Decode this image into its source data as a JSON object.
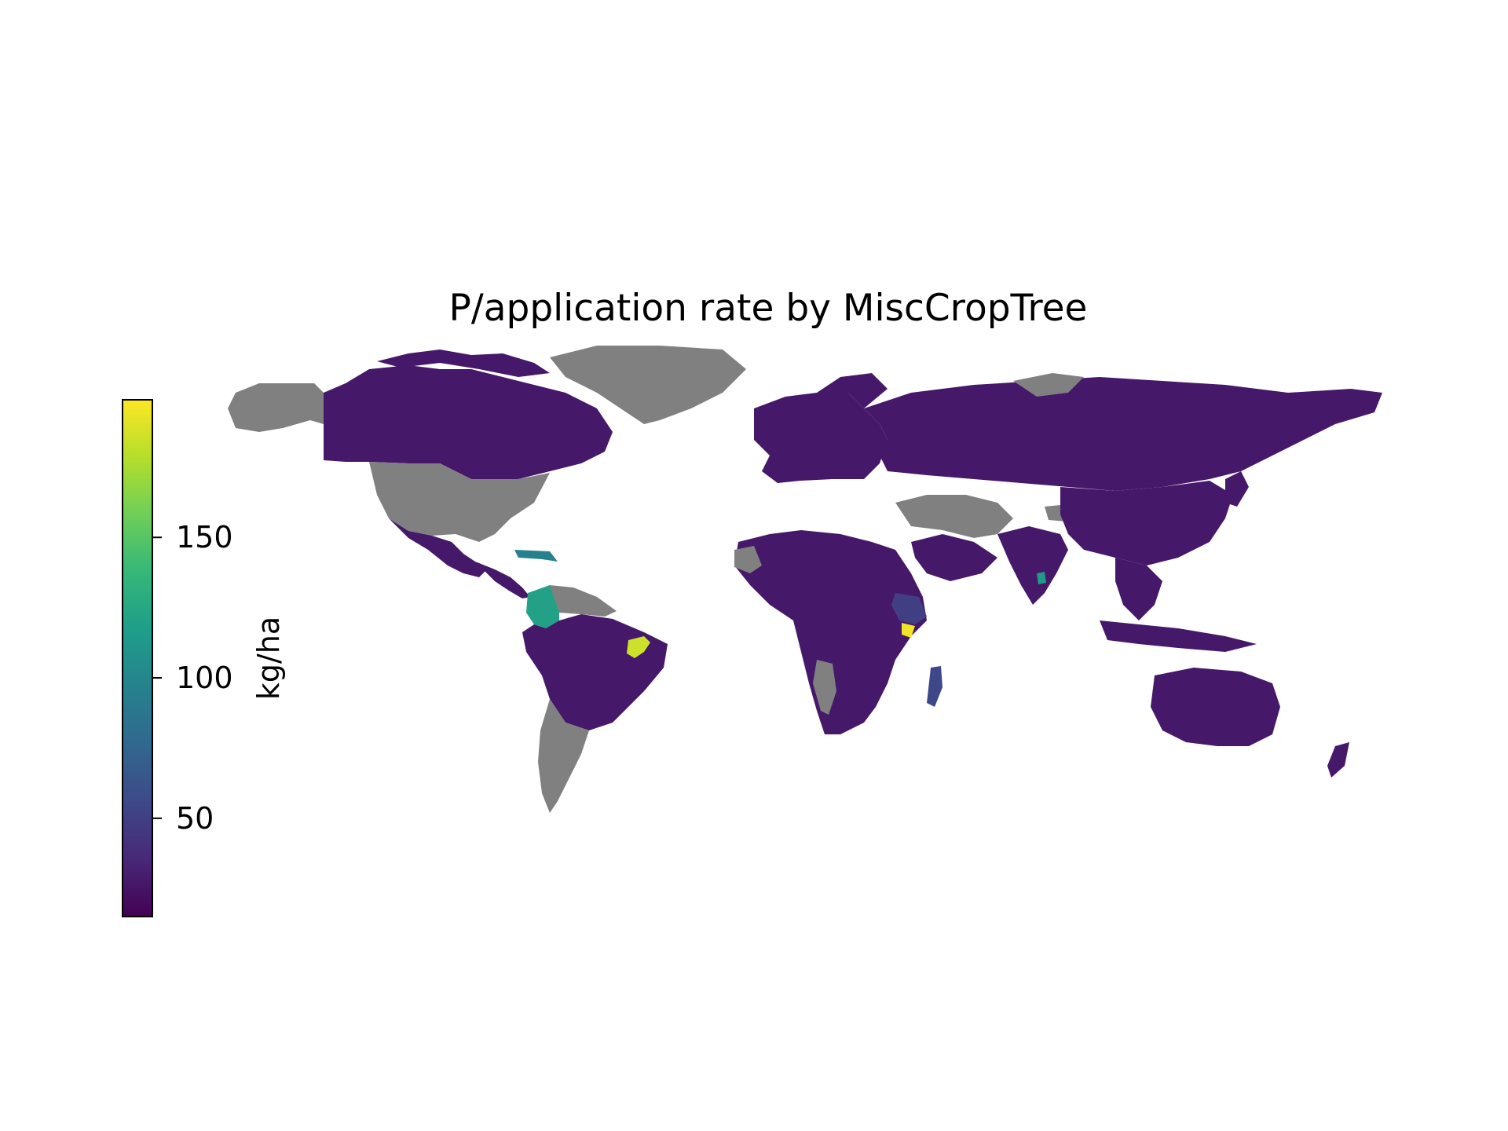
{
  "title": "P/application rate by MiscCropTree",
  "colorbar": {
    "label": "kg/ha",
    "min": 15,
    "max": 199,
    "ticks": [
      {
        "value": 50,
        "label": "50"
      },
      {
        "value": 100,
        "label": "100"
      },
      {
        "value": 150,
        "label": "150"
      }
    ],
    "colormap": "viridis",
    "stops": [
      "#440154",
      "#482878",
      "#3e4989",
      "#31688e",
      "#26828e",
      "#1f9e89",
      "#35b779",
      "#6ece58",
      "#b5de2b",
      "#fde725"
    ]
  },
  "colors": {
    "no_data": "#808080",
    "baseline": "#46277a"
  },
  "map_data": {
    "type": "choropleth",
    "projection": "equirectangular",
    "value_unit": "kg/ha",
    "regions": [
      {
        "name": "Canada",
        "value": 27
      },
      {
        "name": "Mexico",
        "value": 27
      },
      {
        "name": "Central America",
        "value": 27
      },
      {
        "name": "Caribbean",
        "value": 95
      },
      {
        "name": "Colombia",
        "value": 120
      },
      {
        "name": "Brazil",
        "value": 27
      },
      {
        "name": "Northeast Brazil region",
        "value": 185
      },
      {
        "name": "South America (other)",
        "value": 27
      },
      {
        "name": "Europe",
        "value": 27
      },
      {
        "name": "Russia",
        "value": 27
      },
      {
        "name": "Africa",
        "value": 27
      },
      {
        "name": "Ethiopia",
        "value": 50
      },
      {
        "name": "Kenya coast",
        "value": 195
      },
      {
        "name": "Madagascar",
        "value": 55
      },
      {
        "name": "Middle East",
        "value": 27
      },
      {
        "name": "India",
        "value": 27
      },
      {
        "name": "Sri Lanka",
        "value": 115
      },
      {
        "name": "China",
        "value": 27
      },
      {
        "name": "Southeast Asia",
        "value": 27
      },
      {
        "name": "Indonesia",
        "value": 27
      },
      {
        "name": "Japan",
        "value": 27
      },
      {
        "name": "Australia",
        "value": 27
      },
      {
        "name": "New Zealand",
        "value": 27
      }
    ],
    "no_data_regions": [
      "United States",
      "Greenland",
      "Alaska",
      "Argentina",
      "Chile",
      "Iceland",
      "Turkey",
      "Iran",
      "Namibia",
      "Western Sahara",
      "Svalbard"
    ]
  }
}
